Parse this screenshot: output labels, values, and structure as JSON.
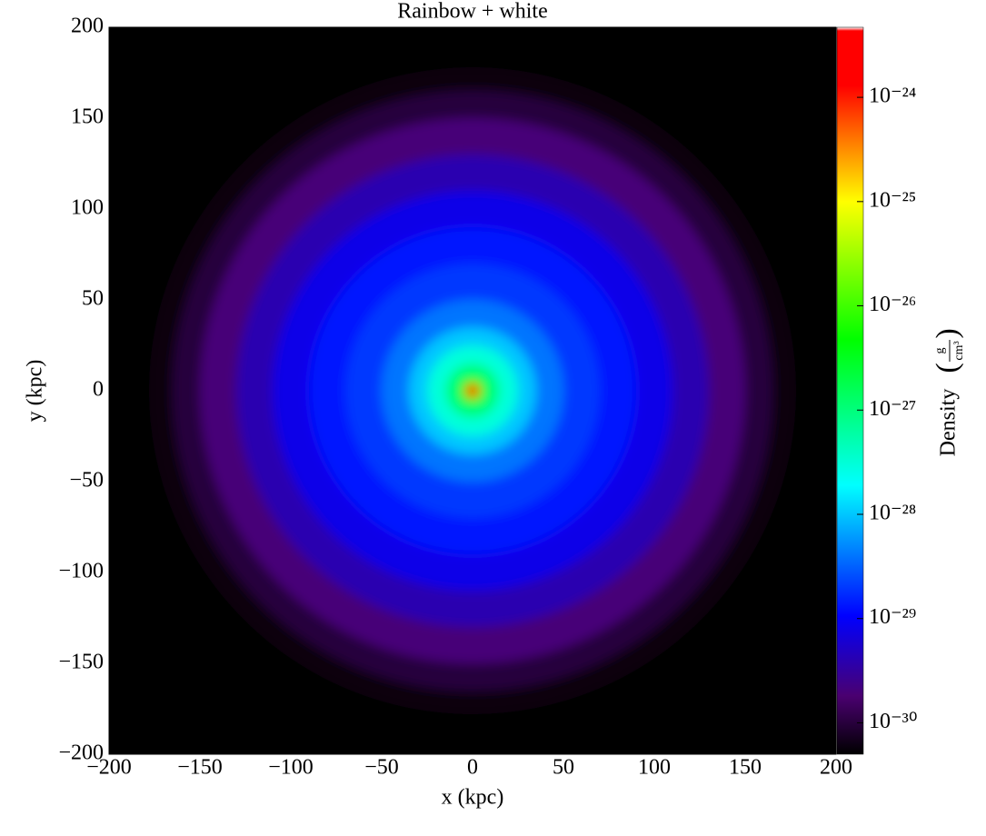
{
  "chart_data": {
    "type": "density_image",
    "title": "Rainbow + white",
    "xlabel": "x  (kpc)",
    "ylabel": "y  (kpc)",
    "xlim": [
      -200,
      200
    ],
    "ylim": [
      -200,
      200
    ],
    "xticks": [
      {
        "value": -200,
        "label": "−200"
      },
      {
        "value": -150,
        "label": "−150"
      },
      {
        "value": -100,
        "label": "−100"
      },
      {
        "value": -50,
        "label": "−50"
      },
      0,
      50,
      100,
      150,
      200
    ],
    "yticks": [
      {
        "value": -200,
        "label": "−200"
      },
      {
        "value": -150,
        "label": "−150"
      },
      {
        "value": -100,
        "label": "−100"
      },
      {
        "value": -50,
        "label": "−50"
      },
      0,
      50,
      100,
      150,
      200
    ],
    "background": "#000000",
    "profile": {
      "r": [
        178,
        165,
        150,
        130,
        110,
        90,
        70,
        50,
        35,
        25,
        15,
        8,
        4
      ],
      "density": [
        6e-31,
        1e-30,
        2e-30,
        4e-30,
        8e-30,
        1.3e-29,
        2e-29,
        4e-29,
        1e-28,
        3e-28,
        1e-27,
        5e-27,
        1e-24
      ]
    },
    "colorbar": {
      "label": "Density",
      "units": {
        "numerator": "g",
        "denominator": "cm³"
      },
      "log": true,
      "clim": [
        5e-31,
        4.7e-24
      ],
      "ticks": [
        {
          "value": 1e-30,
          "label": "10⁻³⁰"
        },
        {
          "value": 1e-29,
          "label": "10⁻²⁹"
        },
        {
          "value": 1e-28,
          "label": "10⁻²⁸"
        },
        {
          "value": 1e-27,
          "label": "10⁻²⁷"
        },
        {
          "value": 1e-26,
          "label": "10⁻²⁶"
        },
        {
          "value": 1e-25,
          "label": "10⁻²⁵"
        },
        {
          "value": 1e-24,
          "label": "10⁻²⁴"
        }
      ],
      "colormap": [
        {
          "at": 0,
          "color": "#000000"
        },
        {
          "at": 0.08,
          "color": "#4a0070"
        },
        {
          "at": 0.19,
          "color": "#0000ff"
        },
        {
          "at": 0.37,
          "color": "#00ffff"
        },
        {
          "at": 0.57,
          "color": "#00ff00"
        },
        {
          "at": 0.76,
          "color": "#ffff00"
        },
        {
          "at": 0.86,
          "color": "#ff6000"
        },
        {
          "at": 0.92,
          "color": "#ff0000"
        },
        {
          "at": 0.995,
          "color": "#ff0000"
        },
        {
          "at": 1,
          "color": "#ffffff"
        }
      ]
    }
  }
}
